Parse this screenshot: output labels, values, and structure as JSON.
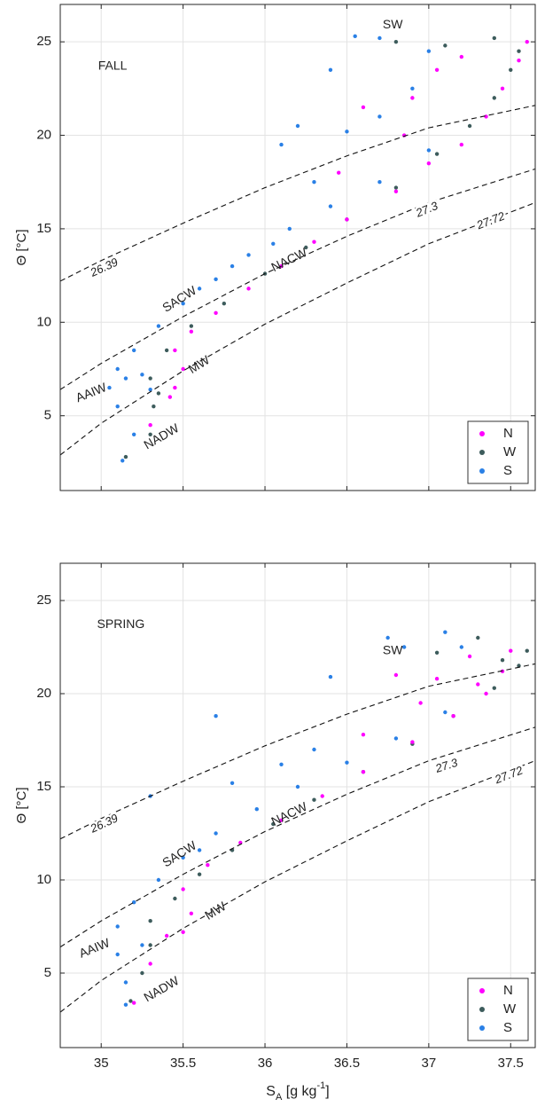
{
  "chart_data": [
    {
      "type": "scatter",
      "ylabel": "Θ [°C]",
      "xlim": [
        34.75,
        37.65
      ],
      "ylim": [
        1,
        27
      ],
      "xticks": [
        35,
        35.5,
        36,
        36.5,
        37,
        37.5
      ],
      "yticks": [
        5,
        10,
        15,
        20,
        25
      ],
      "grid": true,
      "legend": "lower right",
      "annotations": [
        {
          "text": "FALL",
          "x": 35.07,
          "y": 23.7
        },
        {
          "text": "SW",
          "x": 36.78,
          "y": 25.9
        },
        {
          "text": "SACW",
          "x": 35.48,
          "y": 11.2
        },
        {
          "text": "NACW",
          "x": 36.15,
          "y": 13.3
        },
        {
          "text": "MW",
          "x": 35.6,
          "y": 7.7
        },
        {
          "text": "AAIW",
          "x": 34.94,
          "y": 6.2
        },
        {
          "text": "NADW",
          "x": 35.37,
          "y": 3.85
        }
      ],
      "contours": [
        {
          "label": "26.39",
          "label_x": 35.02,
          "label_y": 12.9,
          "x": [
            34.75,
            35,
            35.5,
            36,
            36.5,
            37,
            37.65
          ],
          "y": [
            12.2,
            13.3,
            15.3,
            17.2,
            18.9,
            20.4,
            21.6
          ]
        },
        {
          "label": "27.3",
          "label_x": 36.99,
          "label_y": 16,
          "x": [
            34.75,
            35,
            35.5,
            36,
            36.5,
            37,
            37.65
          ],
          "y": [
            6.4,
            7.8,
            10.3,
            12.6,
            14.6,
            16.4,
            18.2
          ]
        },
        {
          "label": "27.72",
          "label_x": 37.38,
          "label_y": 15.4,
          "x": [
            34.75,
            35,
            35.5,
            36,
            36.5,
            37,
            37.65
          ],
          "y": [
            2.9,
            4.6,
            7.4,
            9.9,
            12.1,
            14.2,
            16.4
          ]
        }
      ],
      "series": [
        {
          "name": "S",
          "color": "#2a80e6",
          "x": [
            35.13,
            35.2,
            35.1,
            35.05,
            35.1,
            35.2,
            35.35,
            35.5,
            35.7,
            35.9,
            36.15,
            36.4,
            36.7,
            37,
            36.3,
            36.1,
            36.2,
            36.5,
            36.7,
            36.4,
            36.55,
            36.7,
            37,
            36.9,
            35.3,
            35.25,
            35.6,
            35.8,
            36.05,
            35.15
          ],
          "y": [
            2.6,
            4,
            5.5,
            6.5,
            7.5,
            8.5,
            9.8,
            11,
            12.3,
            13.6,
            15,
            16.2,
            17.5,
            19.2,
            17.5,
            19.5,
            20.5,
            20.2,
            21,
            23.5,
            25.3,
            25.2,
            24.5,
            22.5,
            6.4,
            7.2,
            11.8,
            13,
            14.2,
            7
          ]
        },
        {
          "name": "W",
          "color": "#3d5c5c",
          "x": [
            35.15,
            35.3,
            35.32,
            35.3,
            35.4,
            35.55,
            35.75,
            36,
            36.25,
            36.5,
            36.8,
            37.05,
            37.25,
            37.4,
            37.5,
            37.1,
            37.4,
            36.8,
            37.55,
            35.35
          ],
          "y": [
            2.8,
            4,
            5.5,
            7,
            8.5,
            9.8,
            11,
            12.6,
            14,
            15.5,
            17.2,
            19,
            20.5,
            22,
            23.5,
            24.8,
            25.2,
            25,
            24.5,
            6.2
          ]
        },
        {
          "name": "N",
          "color": "#ff00ff",
          "x": [
            35.3,
            35.45,
            35.5,
            35.45,
            35.55,
            35.7,
            35.9,
            36.1,
            36.3,
            36.5,
            36.8,
            37,
            37.2,
            37.35,
            37.45,
            37.55,
            37.6,
            37.2,
            37.05,
            36.9,
            36.85,
            36.6,
            36.45,
            35.42
          ],
          "y": [
            4.5,
            6.5,
            7.5,
            8.5,
            9.5,
            10.5,
            11.8,
            13,
            14.3,
            15.5,
            17,
            18.5,
            19.5,
            21,
            22.5,
            24,
            25,
            24.2,
            23.5,
            22,
            20,
            21.5,
            18,
            6
          ]
        }
      ]
    },
    {
      "type": "scatter",
      "ylabel": "Θ [°C]",
      "xlabel": [
        "S",
        "A",
        " [g kg",
        "-1",
        "]"
      ],
      "xlim": [
        34.75,
        37.65
      ],
      "ylim": [
        1,
        27
      ],
      "xticks": [
        35,
        35.5,
        36,
        36.5,
        37,
        37.5
      ],
      "yticks": [
        5,
        10,
        15,
        20,
        25
      ],
      "grid": true,
      "legend": "lower right",
      "annotations": [
        {
          "text": "SPRING",
          "x": 35.12,
          "y": 23.7
        },
        {
          "text": "SW",
          "x": 36.78,
          "y": 22.3
        },
        {
          "text": "SACW",
          "x": 35.48,
          "y": 11.35
        },
        {
          "text": "NACW",
          "x": 36.15,
          "y": 13.5
        },
        {
          "text": "MW",
          "x": 35.7,
          "y": 8.3
        },
        {
          "text": "AAIW",
          "x": 34.96,
          "y": 6.3
        },
        {
          "text": "NADW",
          "x": 35.37,
          "y": 4.1
        }
      ],
      "contours": [
        {
          "label": "26.39",
          "label_x": 35.02,
          "label_y": 13,
          "x": [
            34.75,
            35,
            35.5,
            36,
            36.5,
            37,
            37.65
          ],
          "y": [
            12.2,
            13.3,
            15.3,
            17.2,
            18.9,
            20.4,
            21.6
          ]
        },
        {
          "label": "27.3",
          "label_x": 37.11,
          "label_y": 16.1,
          "x": [
            34.75,
            35,
            35.5,
            36,
            36.5,
            37,
            37.65
          ],
          "y": [
            6.4,
            7.8,
            10.3,
            12.6,
            14.6,
            16.4,
            18.2
          ]
        },
        {
          "label": "27.72",
          "label_x": 37.49,
          "label_y": 15.6,
          "x": [
            34.75,
            35,
            35.5,
            36,
            36.5,
            37,
            37.65
          ],
          "y": [
            2.9,
            4.6,
            7.4,
            9.9,
            12.1,
            14.2,
            16.4
          ]
        }
      ],
      "series": [
        {
          "name": "S",
          "color": "#2a80e6",
          "x": [
            35.15,
            35.15,
            35.1,
            35.1,
            35.2,
            35.35,
            35.5,
            35.7,
            35.95,
            36.2,
            36.5,
            36.8,
            37.1,
            36.3,
            35.8,
            35.7,
            36.4,
            36.85,
            37.1,
            37.2,
            36.75,
            36.1,
            35.3,
            35.25,
            35.6
          ],
          "y": [
            3.3,
            4.5,
            6,
            7.5,
            8.8,
            10,
            11.2,
            12.5,
            13.8,
            15,
            16.3,
            17.6,
            19,
            17,
            15.2,
            18.8,
            20.9,
            22.5,
            23.3,
            22.5,
            23,
            16.2,
            14.5,
            6.5,
            11.6
          ]
        },
        {
          "name": "W",
          "color": "#3d5c5c",
          "x": [
            35.18,
            35.25,
            35.3,
            35.3,
            35.45,
            35.6,
            35.8,
            36.05,
            36.3,
            36.6,
            36.9,
            37.15,
            37.4,
            37.55,
            37.6,
            37.3,
            37.05,
            37.45
          ],
          "y": [
            3.5,
            5,
            6.5,
            7.8,
            9,
            10.3,
            11.6,
            13,
            14.3,
            15.8,
            17.3,
            18.8,
            20.3,
            21.5,
            22.3,
            23,
            22.2,
            21.8
          ]
        },
        {
          "name": "N",
          "color": "#ff00ff",
          "x": [
            35.2,
            35.3,
            35.4,
            35.5,
            35.55,
            35.5,
            35.65,
            35.85,
            36.1,
            36.35,
            36.6,
            36.9,
            37.15,
            37.35,
            37.45,
            37.5,
            37.25,
            37.05,
            36.95,
            36.8,
            36.6,
            37.3
          ],
          "y": [
            3.4,
            5.5,
            7,
            7.2,
            8.2,
            9.5,
            10.8,
            12,
            13.2,
            14.5,
            15.8,
            17.4,
            18.8,
            20,
            21.2,
            22.3,
            22,
            20.8,
            19.5,
            21,
            17.8,
            20.5
          ]
        }
      ]
    }
  ]
}
